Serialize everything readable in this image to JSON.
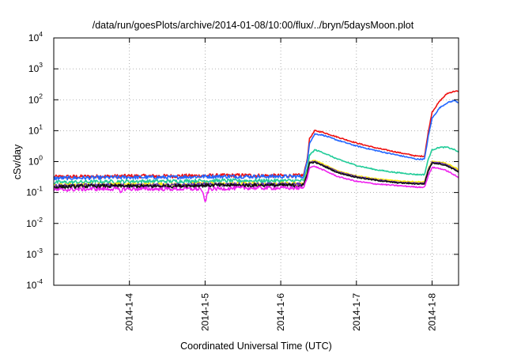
{
  "chart_data": {
    "type": "line",
    "title": "/data/run/goesPlots/archive/2014-01-08/10:00/flux/../bryn/5daysMoon.plot",
    "xlabel": "Coordinated Universal Time (UTC)",
    "ylabel": "cSv/day",
    "yscale": "log",
    "ylim": [
      0.0001,
      10000
    ],
    "xlim": [
      0.0,
      5.35
    ],
    "grid": true,
    "x_ticks": [
      {
        "x": 1.0,
        "label": "2014-1-4"
      },
      {
        "x": 2.0,
        "label": "2014-1-5"
      },
      {
        "x": 3.0,
        "label": "2014-1-6"
      },
      {
        "x": 4.0,
        "label": "2014-1-7"
      },
      {
        "x": 5.0,
        "label": "2014-1-8"
      }
    ],
    "y_ticks": [
      {
        "y": 0.0001,
        "base": "10",
        "exp": "-4"
      },
      {
        "y": 0.001,
        "base": "10",
        "exp": "-3"
      },
      {
        "y": 0.01,
        "base": "10",
        "exp": "-2"
      },
      {
        "y": 0.1,
        "base": "10",
        "exp": "-1"
      },
      {
        "y": 1,
        "base": "10",
        "exp": "0"
      },
      {
        "y": 10,
        "base": "10",
        "exp": "1"
      },
      {
        "y": 100,
        "base": "10",
        "exp": "2"
      },
      {
        "y": 1000,
        "base": "10",
        "exp": "3"
      },
      {
        "y": 10000,
        "base": "10",
        "exp": "4"
      }
    ],
    "series": [
      {
        "color": "#ee1111",
        "values": [
          [
            0.0,
            0.32
          ],
          [
            0.5,
            0.33
          ],
          [
            1.0,
            0.34
          ],
          [
            1.5,
            0.34
          ],
          [
            2.0,
            0.35
          ],
          [
            2.5,
            0.36
          ],
          [
            2.9,
            0.35
          ],
          [
            3.2,
            0.35
          ],
          [
            3.3,
            0.36
          ],
          [
            3.35,
            1.2
          ],
          [
            3.38,
            5.5
          ],
          [
            3.45,
            10.0
          ],
          [
            3.55,
            9.0
          ],
          [
            3.75,
            6.2
          ],
          [
            4.0,
            4.0
          ],
          [
            4.25,
            2.8
          ],
          [
            4.5,
            2.1
          ],
          [
            4.8,
            1.5
          ],
          [
            4.9,
            1.5
          ],
          [
            4.95,
            9.0
          ],
          [
            5.0,
            40.0
          ],
          [
            5.1,
            90.0
          ],
          [
            5.2,
            160.0
          ],
          [
            5.3,
            190.0
          ],
          [
            5.35,
            185.0
          ]
        ]
      },
      {
        "color": "#2266ff",
        "values": [
          [
            0.0,
            0.29
          ],
          [
            0.5,
            0.3
          ],
          [
            1.0,
            0.31
          ],
          [
            1.5,
            0.31
          ],
          [
            2.0,
            0.33
          ],
          [
            2.5,
            0.33
          ],
          [
            2.9,
            0.33
          ],
          [
            3.2,
            0.33
          ],
          [
            3.3,
            0.33
          ],
          [
            3.35,
            1.0
          ],
          [
            3.38,
            4.0
          ],
          [
            3.45,
            7.8
          ],
          [
            3.55,
            7.3
          ],
          [
            3.75,
            4.9
          ],
          [
            4.0,
            3.2
          ],
          [
            4.25,
            2.3
          ],
          [
            4.5,
            1.7
          ],
          [
            4.8,
            1.2
          ],
          [
            4.9,
            1.2
          ],
          [
            4.95,
            6.5
          ],
          [
            5.0,
            25.0
          ],
          [
            5.1,
            55.0
          ],
          [
            5.2,
            80.0
          ],
          [
            5.3,
            95.0
          ],
          [
            5.35,
            80.0
          ]
        ]
      },
      {
        "color": "#22cc99",
        "values": [
          [
            0.0,
            0.21
          ],
          [
            0.5,
            0.22
          ],
          [
            1.0,
            0.23
          ],
          [
            1.5,
            0.23
          ],
          [
            2.0,
            0.24
          ],
          [
            2.5,
            0.24
          ],
          [
            2.9,
            0.24
          ],
          [
            3.2,
            0.24
          ],
          [
            3.3,
            0.24
          ],
          [
            3.35,
            0.6
          ],
          [
            3.38,
            1.6
          ],
          [
            3.45,
            2.4
          ],
          [
            3.55,
            2.0
          ],
          [
            3.75,
            1.2
          ],
          [
            4.0,
            0.75
          ],
          [
            4.25,
            0.55
          ],
          [
            4.5,
            0.45
          ],
          [
            4.8,
            0.38
          ],
          [
            4.9,
            0.38
          ],
          [
            4.95,
            1.2
          ],
          [
            5.0,
            2.4
          ],
          [
            5.1,
            2.9
          ],
          [
            5.2,
            2.9
          ],
          [
            5.3,
            2.4
          ],
          [
            5.35,
            2.0
          ]
        ]
      },
      {
        "color": "#ffee00",
        "values": [
          [
            0.0,
            0.17
          ],
          [
            0.5,
            0.18
          ],
          [
            1.0,
            0.18
          ],
          [
            1.5,
            0.18
          ],
          [
            2.0,
            0.19
          ],
          [
            2.5,
            0.19
          ],
          [
            2.9,
            0.19
          ],
          [
            3.2,
            0.19
          ],
          [
            3.3,
            0.19
          ],
          [
            3.35,
            0.45
          ],
          [
            3.38,
            1.0
          ],
          [
            3.45,
            1.1
          ],
          [
            3.55,
            0.85
          ],
          [
            3.75,
            0.5
          ],
          [
            4.0,
            0.35
          ],
          [
            4.25,
            0.28
          ],
          [
            4.5,
            0.24
          ],
          [
            4.8,
            0.22
          ],
          [
            4.9,
            0.22
          ],
          [
            4.95,
            0.6
          ],
          [
            5.0,
            1.0
          ],
          [
            5.1,
            0.95
          ],
          [
            5.2,
            0.85
          ],
          [
            5.3,
            0.65
          ],
          [
            5.35,
            0.55
          ]
        ]
      },
      {
        "color": "#6633aa",
        "values": [
          [
            0.0,
            0.16
          ],
          [
            0.5,
            0.17
          ],
          [
            1.0,
            0.17
          ],
          [
            1.5,
            0.17
          ],
          [
            2.0,
            0.18
          ],
          [
            2.5,
            0.18
          ],
          [
            2.9,
            0.18
          ],
          [
            3.2,
            0.18
          ],
          [
            3.3,
            0.18
          ],
          [
            3.35,
            0.42
          ],
          [
            3.38,
            0.95
          ],
          [
            3.45,
            1.0
          ],
          [
            3.55,
            0.8
          ],
          [
            3.75,
            0.47
          ],
          [
            4.0,
            0.33
          ],
          [
            4.25,
            0.26
          ],
          [
            4.5,
            0.22
          ],
          [
            4.8,
            0.2
          ],
          [
            4.9,
            0.2
          ],
          [
            4.95,
            0.55
          ],
          [
            5.0,
            0.95
          ],
          [
            5.1,
            0.9
          ],
          [
            5.2,
            0.78
          ],
          [
            5.3,
            0.58
          ],
          [
            5.35,
            0.48
          ]
        ]
      },
      {
        "color": "#111111",
        "values": [
          [
            0.0,
            0.15
          ],
          [
            0.5,
            0.16
          ],
          [
            1.0,
            0.16
          ],
          [
            1.5,
            0.16
          ],
          [
            2.0,
            0.17
          ],
          [
            2.5,
            0.17
          ],
          [
            2.9,
            0.17
          ],
          [
            3.2,
            0.17
          ],
          [
            3.3,
            0.17
          ],
          [
            3.35,
            0.4
          ],
          [
            3.38,
            0.9
          ],
          [
            3.45,
            0.95
          ],
          [
            3.55,
            0.75
          ],
          [
            3.75,
            0.44
          ],
          [
            4.0,
            0.31
          ],
          [
            4.25,
            0.25
          ],
          [
            4.5,
            0.21
          ],
          [
            4.8,
            0.19
          ],
          [
            4.9,
            0.19
          ],
          [
            4.95,
            0.5
          ],
          [
            5.0,
            0.9
          ],
          [
            5.1,
            0.85
          ],
          [
            5.2,
            0.72
          ],
          [
            5.3,
            0.55
          ],
          [
            5.35,
            0.45
          ]
        ]
      },
      {
        "color": "#ee22ee",
        "values": [
          [
            0.0,
            0.12
          ],
          [
            0.5,
            0.13
          ],
          [
            0.85,
            0.13
          ],
          [
            0.88,
            0.1
          ],
          [
            0.91,
            0.13
          ],
          [
            1.0,
            0.13
          ],
          [
            1.5,
            0.13
          ],
          [
            1.95,
            0.13
          ],
          [
            2.0,
            0.05
          ],
          [
            2.05,
            0.13
          ],
          [
            2.5,
            0.14
          ],
          [
            2.9,
            0.14
          ],
          [
            3.2,
            0.14
          ],
          [
            3.3,
            0.14
          ],
          [
            3.35,
            0.3
          ],
          [
            3.38,
            0.65
          ],
          [
            3.45,
            0.7
          ],
          [
            3.55,
            0.55
          ],
          [
            3.75,
            0.33
          ],
          [
            4.0,
            0.23
          ],
          [
            4.25,
            0.19
          ],
          [
            4.5,
            0.17
          ],
          [
            4.8,
            0.15
          ],
          [
            4.9,
            0.15
          ],
          [
            4.95,
            0.35
          ],
          [
            5.0,
            0.65
          ],
          [
            5.1,
            0.6
          ],
          [
            5.2,
            0.5
          ],
          [
            5.3,
            0.36
          ],
          [
            5.35,
            0.3
          ]
        ]
      }
    ]
  }
}
